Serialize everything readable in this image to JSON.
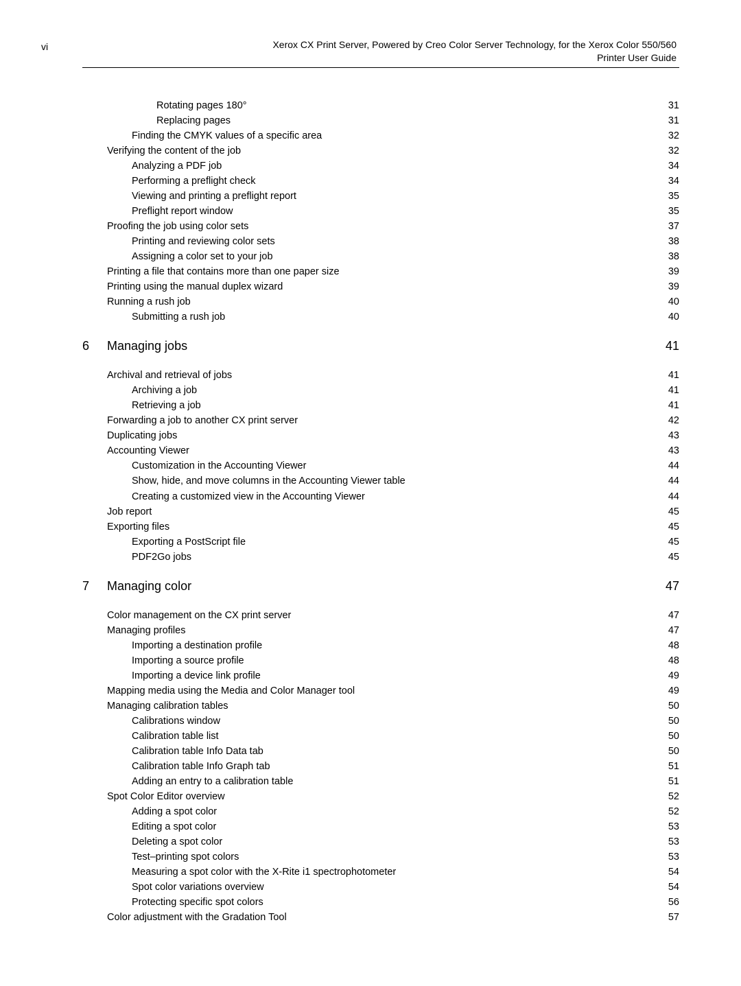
{
  "header": {
    "page_number": "vi",
    "title_line1": "Xerox CX Print Server, Powered by Creo Color Server Technology, for the Xerox Color 550/560",
    "title_line2": "Printer User Guide"
  },
  "chapters": [
    {
      "number": "6",
      "title": "Managing jobs",
      "page": "41"
    },
    {
      "number": "7",
      "title": "Managing color",
      "page": "47"
    }
  ],
  "sections": {
    "pre": [
      {
        "level": 3,
        "label": "Rotating pages 180°",
        "page": "31"
      },
      {
        "level": 3,
        "label": "Replacing pages",
        "page": "31"
      },
      {
        "level": 2,
        "label": "Finding the CMYK values of a specific area",
        "page": "32"
      },
      {
        "level": 1,
        "label": "Verifying the content of the job",
        "page": "32"
      },
      {
        "level": 2,
        "label": "Analyzing a PDF job",
        "page": "34"
      },
      {
        "level": 2,
        "label": "Performing a preflight check",
        "page": "34"
      },
      {
        "level": 2,
        "label": "Viewing and printing a preflight report",
        "page": "35"
      },
      {
        "level": 2,
        "label": "Preflight report window",
        "page": "35"
      },
      {
        "level": 1,
        "label": "Proofing the job using color sets",
        "page": "37"
      },
      {
        "level": 2,
        "label": "Printing and reviewing color sets",
        "page": "38"
      },
      {
        "level": 2,
        "label": "Assigning a color set to your job",
        "page": "38"
      },
      {
        "level": 1,
        "label": "Printing a file that contains more than one paper size",
        "page": "39"
      },
      {
        "level": 1,
        "label": "Printing using the manual duplex wizard",
        "page": "39"
      },
      {
        "level": 1,
        "label": "Running a rush job",
        "page": "40"
      },
      {
        "level": 2,
        "label": "Submitting a rush job",
        "page": "40"
      }
    ],
    "ch6": [
      {
        "level": 1,
        "label": "Archival and retrieval of jobs",
        "page": "41"
      },
      {
        "level": 2,
        "label": "Archiving a job",
        "page": "41"
      },
      {
        "level": 2,
        "label": "Retrieving a job",
        "page": "41"
      },
      {
        "level": 1,
        "label": "Forwarding a job to another CX print server ",
        "page": "42"
      },
      {
        "level": 1,
        "label": "Duplicating jobs",
        "page": "43"
      },
      {
        "level": 1,
        "label": "Accounting Viewer",
        "page": "43"
      },
      {
        "level": 2,
        "label": "Customization in the Accounting Viewer",
        "page": "44"
      },
      {
        "level": 2,
        "label": "Show, hide, and move columns in the Accounting Viewer table",
        "page": "44"
      },
      {
        "level": 2,
        "label": "Creating a customized view in the Accounting Viewer",
        "page": "44"
      },
      {
        "level": 1,
        "label": "Job report",
        "page": "45"
      },
      {
        "level": 1,
        "label": "Exporting files",
        "page": "45"
      },
      {
        "level": 2,
        "label": "Exporting a PostScript file",
        "page": "45"
      },
      {
        "level": 2,
        "label": "PDF2Go jobs",
        "page": "45"
      }
    ],
    "ch7": [
      {
        "level": 1,
        "label": "Color management on the CX print server",
        "page": "47"
      },
      {
        "level": 1,
        "label": "Managing profiles ",
        "page": "47"
      },
      {
        "level": 2,
        "label": "Importing a destination profile",
        "page": "48"
      },
      {
        "level": 2,
        "label": "Importing a source profile",
        "page": "48"
      },
      {
        "level": 2,
        "label": "Importing a device link profile",
        "page": "49"
      },
      {
        "level": 1,
        "label": "Mapping media using the Media and Color Manager tool",
        "page": "49"
      },
      {
        "level": 1,
        "label": "Managing calibration tables",
        "page": "50"
      },
      {
        "level": 2,
        "label": "Calibrations window",
        "page": "50"
      },
      {
        "level": 2,
        "label": "Calibration table list",
        "page": "50"
      },
      {
        "level": 2,
        "label": "Calibration table Info Data tab",
        "page": "50"
      },
      {
        "level": 2,
        "label": "Calibration table Info Graph tab",
        "page": "51"
      },
      {
        "level": 2,
        "label": "Adding an entry to a calibration table",
        "page": "51"
      },
      {
        "level": 1,
        "label": "Spot Color Editor overview ",
        "page": "52"
      },
      {
        "level": 2,
        "label": "Adding a spot color",
        "page": "52"
      },
      {
        "level": 2,
        "label": "Editing a spot color",
        "page": "53"
      },
      {
        "level": 2,
        "label": "Deleting a spot color",
        "page": "53"
      },
      {
        "level": 2,
        "label": "Test–printing spot colors",
        "page": "53"
      },
      {
        "level": 2,
        "label": "Measuring a spot color with the X-Rite i1 spectrophotometer",
        "page": "54"
      },
      {
        "level": 2,
        "label": "Spot color variations overview",
        "page": "54"
      },
      {
        "level": 2,
        "label": "Protecting specific spot colors",
        "page": "56"
      },
      {
        "level": 1,
        "label": "Color adjustment with the Gradation Tool ",
        "page": "57"
      }
    ]
  }
}
